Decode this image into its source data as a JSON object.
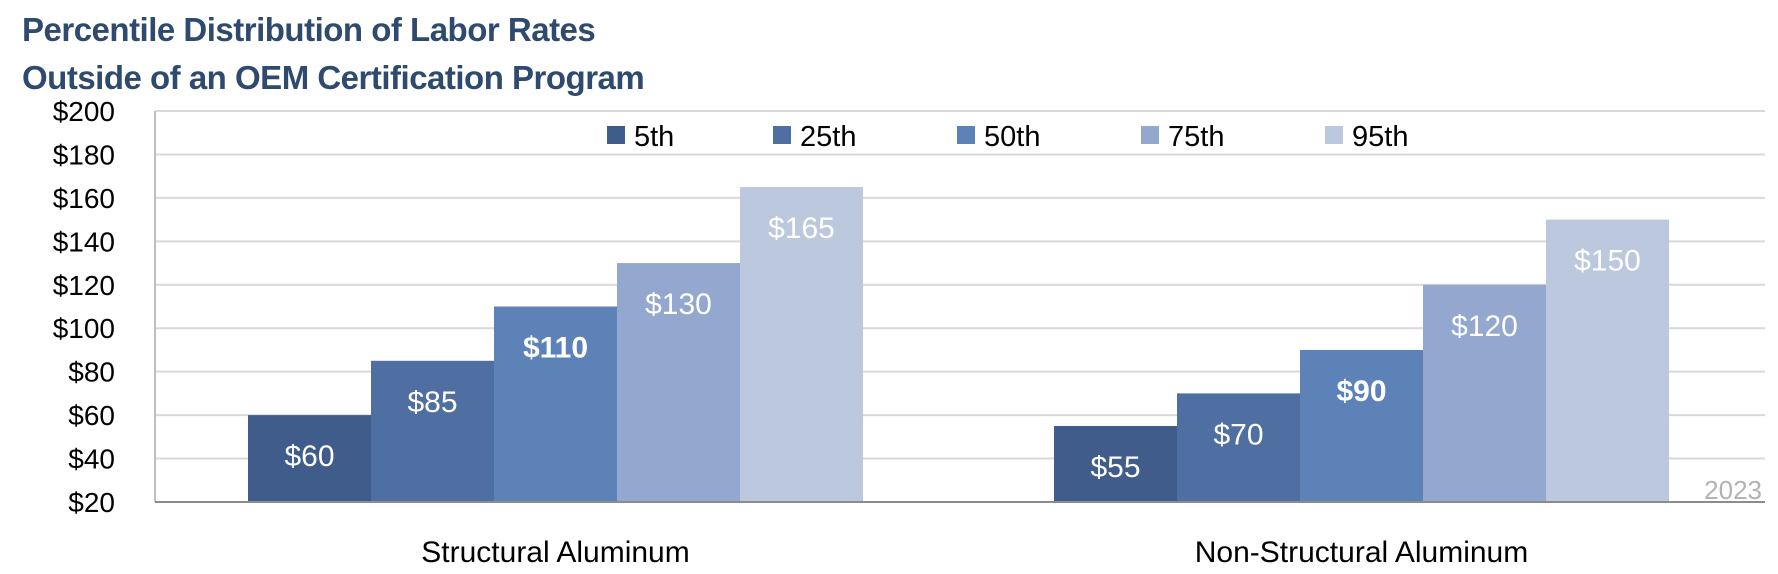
{
  "chart_data": {
    "type": "bar",
    "title_lines": [
      "Percentile Distribution of Labor Rates",
      "Outside of an OEM Certification Program"
    ],
    "categories": [
      "Structural Aluminum",
      "Non-Structural Aluminum"
    ],
    "series": [
      {
        "name": "5th",
        "values": [
          60,
          55
        ],
        "labels": [
          "$60",
          "$55"
        ],
        "color": "#3f5c8a",
        "bold": false
      },
      {
        "name": "25th",
        "values": [
          85,
          70
        ],
        "labels": [
          "$85",
          "$70"
        ],
        "color": "#4f6fa3",
        "bold": false
      },
      {
        "name": "50th",
        "values": [
          110,
          90
        ],
        "labels": [
          "$110",
          "$90"
        ],
        "color": "#5c82b8",
        "bold": true
      },
      {
        "name": "75th",
        "values": [
          130,
          120
        ],
        "labels": [
          "$130",
          "$120"
        ],
        "color": "#94a8cf",
        "bold": false
      },
      {
        "name": "95th",
        "values": [
          165,
          150
        ],
        "labels": [
          "$165",
          "$150"
        ],
        "color": "#bcc8de",
        "bold": false
      }
    ],
    "ylim": [
      20,
      200
    ],
    "yticks": [
      20,
      40,
      60,
      80,
      100,
      120,
      140,
      160,
      180,
      200
    ],
    "ytick_labels": [
      "$20",
      "$40",
      "$60",
      "$80",
      "$100",
      "$120",
      "$140",
      "$160",
      "$180",
      "$200"
    ],
    "grid": true,
    "legend_position": "top-center",
    "xlabel": "",
    "ylabel": ""
  },
  "footnote": "2023"
}
